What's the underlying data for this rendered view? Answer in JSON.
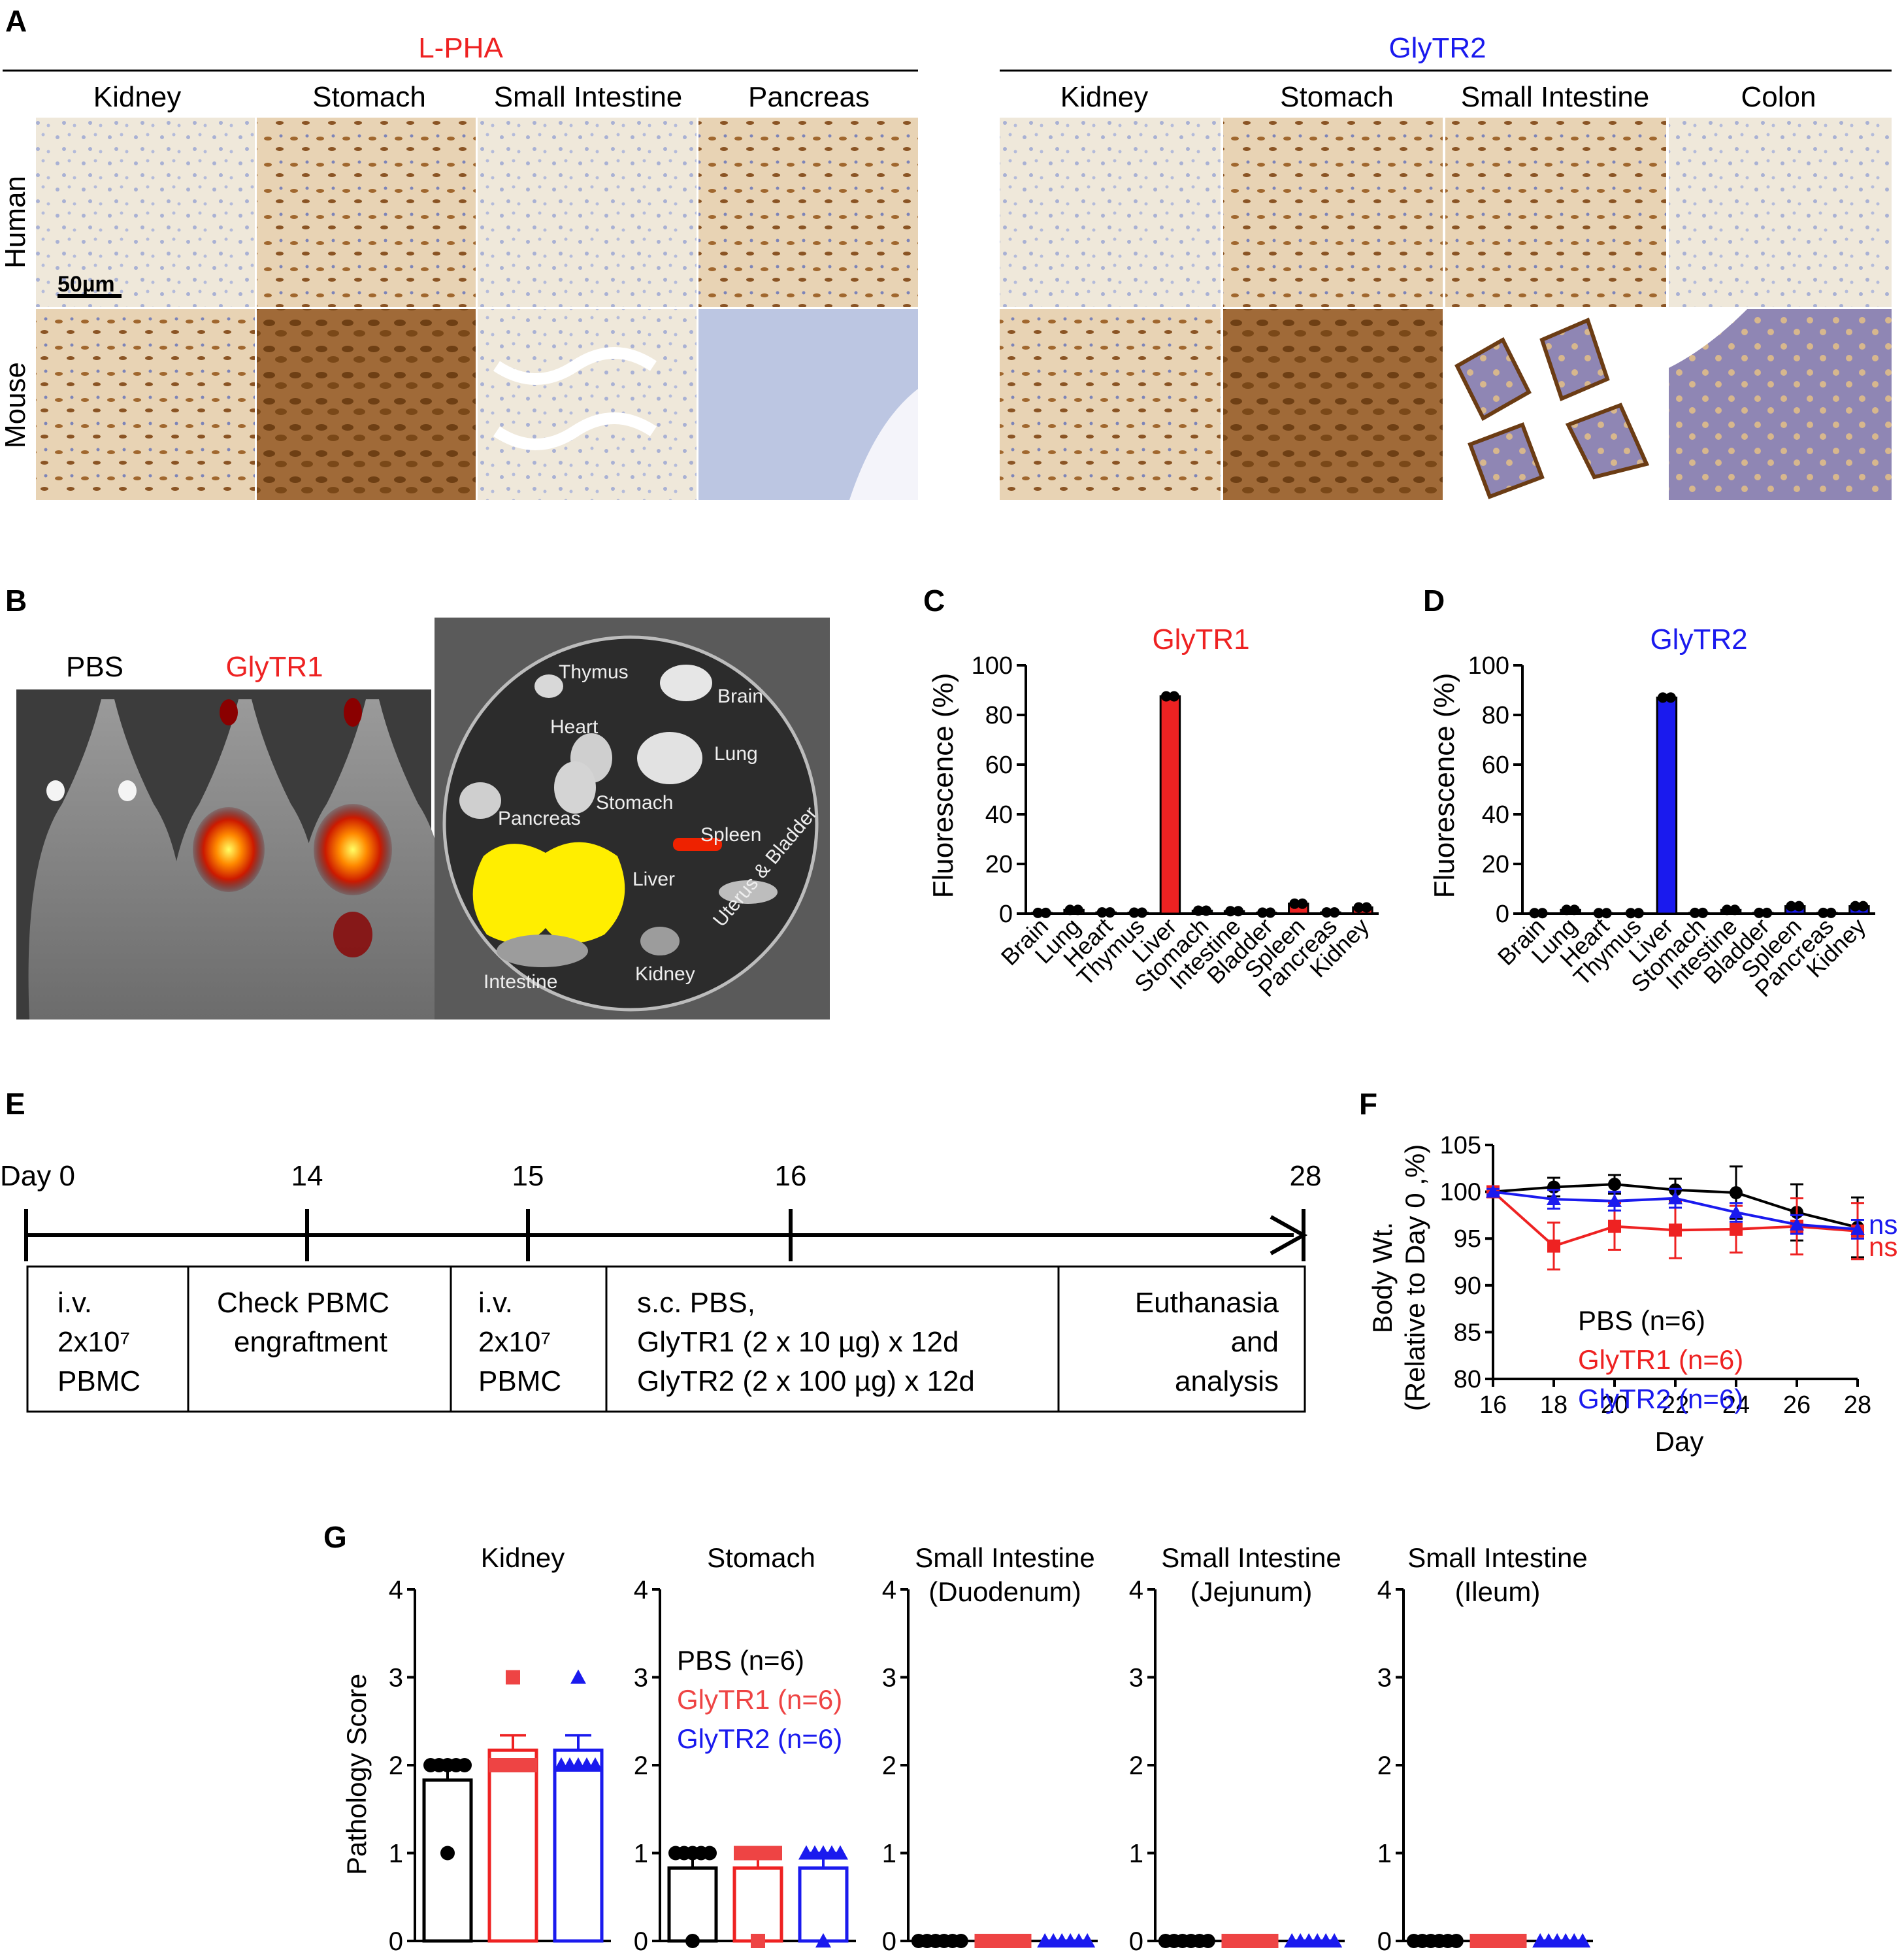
{
  "colors": {
    "pbs": "#000000",
    "glytr1": "#ee2222",
    "glytr2": "#1a1aee",
    "tissue_bg": "#efe9dc",
    "stain": "#8a5a2a",
    "hema": "#9fa8cc",
    "ivis_bg": "#5a5a5a"
  },
  "panel_labels": {
    "a": "A",
    "b": "B",
    "c": "C",
    "d": "D",
    "e": "E",
    "f": "F",
    "g": "G"
  },
  "panel_a": {
    "lpha_title": "L-PHA",
    "glytr2_title": "GlyTR2",
    "lpha_columns": [
      "Kidney",
      "Stomach",
      "Small Intestine",
      "Pancreas"
    ],
    "glytr2_columns": [
      "Kidney",
      "Stomach",
      "Small Intestine",
      "Colon"
    ],
    "row_labels": [
      "Human",
      "Mouse"
    ],
    "scale_bar": "50µm"
  },
  "panel_b": {
    "pbs_label": "PBS",
    "glytr1_label": "GlyTR1",
    "organs": [
      "Thymus",
      "Brain",
      "Heart",
      "Lung",
      "Stomach",
      "Pancreas",
      "Spleen",
      "Liver",
      "Uterus & Bladder",
      "Intestine",
      "Kidney"
    ]
  },
  "chart_data": [
    {
      "id": "C",
      "type": "bar",
      "title": "GlyTR1",
      "ylabel": "Fluorescence (%)",
      "ylim": [
        0,
        100
      ],
      "yticks": [
        "0",
        "20",
        "40",
        "60",
        "80",
        "100"
      ],
      "categories": [
        "Brain",
        "Lung",
        "Heart",
        "Thymus",
        "Liver",
        "Stomach",
        "Intestine",
        "Bladder",
        "Spleen",
        "Pancreas",
        "Kidney"
      ],
      "values": [
        0.3,
        1.5,
        0.5,
        0.4,
        87.5,
        1.2,
        1.0,
        0.4,
        4.0,
        0.5,
        2.5
      ]
    },
    {
      "id": "D",
      "type": "bar",
      "title": "GlyTR2",
      "ylabel": "Fluorescence (%)",
      "ylim": [
        0,
        100
      ],
      "yticks": [
        "0",
        "20",
        "40",
        "60",
        "80",
        "100"
      ],
      "categories": [
        "Brain",
        "Lung",
        "Heart",
        "Thymus",
        "Liver",
        "Stomach",
        "Intestine",
        "Bladder",
        "Spleen",
        "Pancreas",
        "Kidney"
      ],
      "values": [
        0.2,
        1.5,
        0.2,
        0.2,
        87.0,
        0.3,
        1.5,
        0.3,
        3.0,
        0.3,
        3.0
      ]
    },
    {
      "id": "F",
      "type": "line",
      "ylabel_line1": "Body Wt.",
      "ylabel_line2": "(Relative to Day 0 ,%)",
      "xlabel": "Day",
      "x": [
        16,
        18,
        20,
        22,
        24,
        26,
        28
      ],
      "xticks": [
        "16",
        "18",
        "20",
        "22",
        "24",
        "26",
        "28"
      ],
      "ylim": [
        80,
        105
      ],
      "yticks": [
        "80",
        "85",
        "90",
        "95",
        "100",
        "105"
      ],
      "series": [
        {
          "name": "PBS (n=6)",
          "values": [
            100,
            100.5,
            100.8,
            100.2,
            99.9,
            97.8,
            96.2
          ],
          "errors": [
            0.3,
            1.0,
            1.0,
            1.2,
            2.8,
            3.0,
            3.2
          ]
        },
        {
          "name": "GlyTR1 (n=6)",
          "values": [
            100,
            94.2,
            96.3,
            95.9,
            96.0,
            96.3,
            95.8
          ],
          "errors": [
            0.3,
            2.5,
            2.5,
            3.0,
            2.5,
            3.0,
            3.0
          ]
        },
        {
          "name": "GlyTR2 (n=6)",
          "values": [
            100,
            99.2,
            99.0,
            99.3,
            97.8,
            96.5,
            96.0
          ],
          "errors": [
            0.3,
            1.0,
            1.0,
            1.0,
            1.0,
            1.0,
            1.0
          ]
        }
      ],
      "annotations": [
        "ns",
        "ns"
      ]
    },
    {
      "id": "G",
      "type": "bar",
      "ylabel": "Pathology Score",
      "ylim": [
        0,
        4
      ],
      "yticks": [
        "0",
        "1",
        "2",
        "3",
        "4"
      ],
      "groups": [
        "PBS",
        "GlyTR1",
        "GlyTR2"
      ],
      "legend": [
        "PBS (n=6)",
        "GlyTR1 (n=6)",
        "GlyTR2 (n=6)"
      ],
      "panels": [
        {
          "title_line1": "Kidney",
          "title_line2": "",
          "means": [
            1.83,
            2.17,
            2.17
          ],
          "sem": [
            0.17,
            0.17,
            0.17
          ],
          "points": [
            [
              2,
              2,
              2,
              2,
              2,
              1
            ],
            [
              2,
              2,
              2,
              2,
              2,
              3
            ],
            [
              2,
              2,
              2,
              2,
              2,
              3
            ]
          ]
        },
        {
          "title_line1": "Stomach",
          "title_line2": "",
          "means": [
            0.83,
            0.83,
            0.83
          ],
          "sem": [
            0.17,
            0.17,
            0.17
          ],
          "points": [
            [
              1,
              1,
              1,
              1,
              1,
              0
            ],
            [
              1,
              1,
              1,
              1,
              1,
              0
            ],
            [
              1,
              1,
              1,
              1,
              1,
              0
            ]
          ]
        },
        {
          "title_line1": "Small Intestine",
          "title_line2": "(Duodenum)",
          "means": [
            0,
            0,
            0
          ],
          "sem": [
            0,
            0,
            0
          ],
          "points": [
            [
              0,
              0,
              0,
              0,
              0,
              0
            ],
            [
              0,
              0,
              0,
              0,
              0,
              0
            ],
            [
              0,
              0,
              0,
              0,
              0,
              0
            ]
          ]
        },
        {
          "title_line1": "Small Intestine",
          "title_line2": "(Jejunum)",
          "means": [
            0,
            0,
            0
          ],
          "sem": [
            0,
            0,
            0
          ],
          "points": [
            [
              0,
              0,
              0,
              0,
              0,
              0
            ],
            [
              0,
              0,
              0,
              0,
              0,
              0
            ],
            [
              0,
              0,
              0,
              0,
              0,
              0
            ]
          ]
        },
        {
          "title_line1": "Small Intestine",
          "title_line2": "(Ileum)",
          "means": [
            0,
            0,
            0
          ],
          "sem": [
            0,
            0,
            0
          ],
          "points": [
            [
              0,
              0,
              0,
              0,
              0,
              0
            ],
            [
              0,
              0,
              0,
              0,
              0,
              0
            ],
            [
              0,
              0,
              0,
              0,
              0,
              0
            ]
          ]
        }
      ]
    }
  ],
  "panel_e": {
    "days": [
      "Day 0",
      "14",
      "15",
      "16",
      "28"
    ],
    "boxes": [
      {
        "lines": [
          "i.v.",
          "2x10⁷",
          "PBMC"
        ]
      },
      {
        "lines": [
          "Check PBMC",
          "engraftment"
        ]
      },
      {
        "lines": [
          "i.v.",
          "2x10⁷",
          "PBMC"
        ]
      },
      {
        "lines": [
          "s.c. PBS,",
          "GlyTR1 (2 x 10 µg) x 12d",
          "GlyTR2 (2 x 100 µg) x 12d"
        ]
      },
      {
        "lines": [
          "Euthanasia",
          "and",
          "analysis"
        ]
      }
    ]
  }
}
